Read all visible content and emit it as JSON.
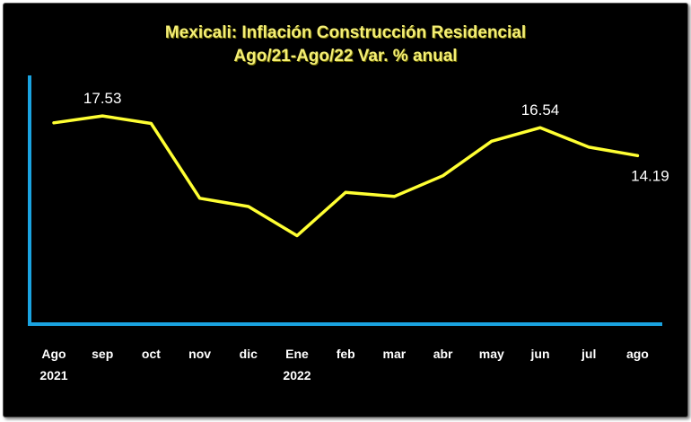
{
  "chart_data": {
    "type": "line",
    "title": "Mexicali: Inflación Construcción Residencial",
    "subtitle": "Ago/21-Ago/22 Var. % anual",
    "categories": [
      [
        "Ago",
        "2021"
      ],
      [
        "sep",
        ""
      ],
      [
        "oct",
        ""
      ],
      [
        "nov",
        ""
      ],
      [
        "dic",
        ""
      ],
      [
        "Ene",
        "2022"
      ],
      [
        "feb",
        ""
      ],
      [
        "mar",
        ""
      ],
      [
        "abr",
        ""
      ],
      [
        "may",
        ""
      ],
      [
        "jun",
        ""
      ],
      [
        "jul",
        ""
      ],
      [
        "ago",
        ""
      ]
    ],
    "series": [
      {
        "values": [
          16.95,
          17.53,
          16.9,
          10.6,
          9.9,
          7.45,
          11.1,
          10.75,
          12.5,
          15.4,
          16.54,
          14.9,
          14.19
        ]
      }
    ],
    "data_labels": [
      {
        "index": 1,
        "text": "17.53"
      },
      {
        "index": 10,
        "text": "16.54"
      },
      {
        "index": 12,
        "text": "14.19"
      }
    ],
    "xlabel": "",
    "ylabel": "",
    "ylim": [
      0,
      22
    ],
    "grid": false,
    "legend": "none",
    "colors": {
      "background": "#000000",
      "line": "#ffff33",
      "axis": "#1aa3e0",
      "title": "#f5ef76",
      "text": "#ffffff"
    }
  }
}
